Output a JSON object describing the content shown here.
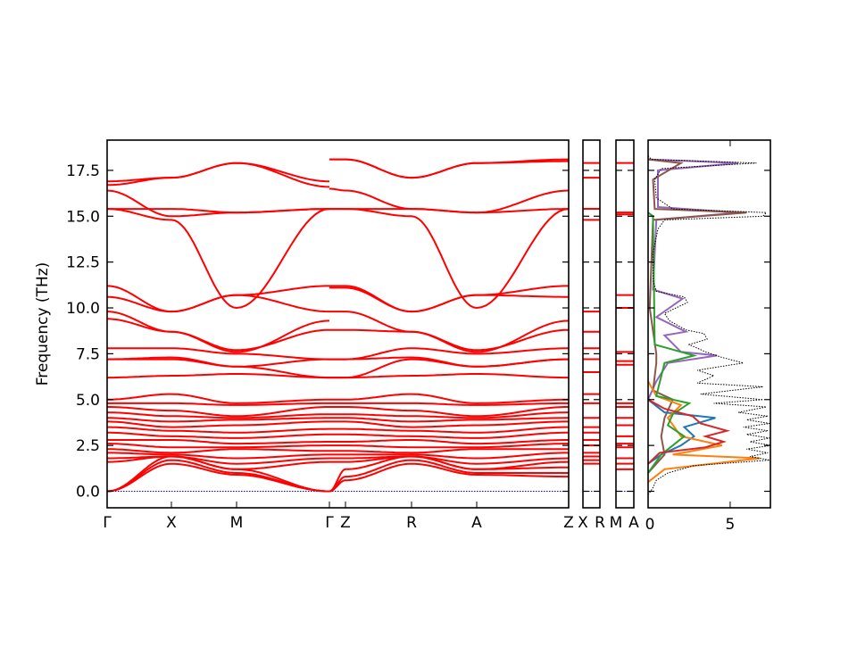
{
  "chart_data": {
    "type": "line",
    "title": "",
    "ylabel": "Frequency (THz)",
    "ylim": [
      -0.9,
      19.15
    ],
    "yticks": [
      "0.0",
      "2.5",
      "5.0",
      "7.5",
      "10.0",
      "12.5",
      "15.0",
      "17.5"
    ],
    "ytick_values": [
      0,
      2.5,
      5,
      7.5,
      10,
      12.5,
      15,
      17.5
    ],
    "band_color": "#ff0000",
    "zero_line_color": "#0000ff",
    "panels": [
      {
        "name": "main",
        "kpath_labels": [
          "Γ",
          "X",
          "M",
          "Γ",
          "Z",
          "R",
          "A",
          "Z"
        ],
        "segments": [
          {
            "labels": [
              "Γ",
              "X",
              "M",
              "Γ"
            ],
            "bands": [
              [
                16.9,
                17.1,
                17.9,
                16.6
              ],
              [
                16.7,
                17.1,
                17.9,
                16.9
              ],
              [
                16.4,
                15.0,
                15.2,
                15.4
              ],
              [
                15.4,
                15.4,
                15.2,
                15.4
              ],
              [
                15.4,
                14.8,
                10.0,
                15.4
              ],
              [
                11.2,
                9.8,
                10.7,
                11.2
              ],
              [
                10.6,
                9.8,
                10.7,
                9.8
              ],
              [
                9.8,
                8.7,
                7.6,
                9.3
              ],
              [
                9.4,
                8.7,
                7.7,
                8.8
              ],
              [
                7.8,
                7.8,
                7.5,
                7.2
              ],
              [
                7.2,
                7.3,
                6.8,
                7.2
              ],
              [
                7.2,
                7.2,
                6.8,
                6.2
              ],
              [
                6.2,
                6.3,
                6.4,
                6.2
              ],
              [
                5.0,
                5.3,
                4.8,
                5.0
              ],
              [
                4.8,
                4.8,
                4.7,
                4.8
              ],
              [
                4.6,
                4.4,
                4.1,
                4.6
              ],
              [
                4.3,
                4.1,
                4.0,
                4.2
              ],
              [
                4.0,
                3.8,
                3.9,
                4.0
              ],
              [
                3.8,
                3.5,
                3.6,
                3.8
              ],
              [
                3.5,
                3.3,
                3.2,
                3.4
              ],
              [
                3.2,
                3.0,
                2.9,
                3.1
              ],
              [
                2.8,
                2.8,
                2.6,
                2.7
              ],
              [
                2.6,
                2.4,
                2.4,
                2.5
              ],
              [
                2.3,
                2.1,
                2.3,
                2.2
              ],
              [
                2.1,
                2.0,
                1.8,
                2.0
              ],
              [
                1.8,
                1.9,
                1.5,
                1.8
              ],
              [
                1.6,
                1.9,
                1.2,
                1.6
              ],
              [
                0,
                1.9,
                1.2,
                0
              ],
              [
                0,
                1.7,
                1.0,
                0
              ],
              [
                0,
                1.5,
                0.9,
                0
              ]
            ]
          },
          {
            "labels": [
              "Γ",
              "Z",
              "R",
              "A",
              "Z"
            ],
            "bands": [
              [
                18.1,
                18.1,
                17.1,
                17.9,
                18.1
              ],
              [
                18.1,
                18.1,
                17.1,
                17.9,
                18.0
              ],
              [
                16.5,
                16.4,
                15.4,
                15.2,
                16.4
              ],
              [
                15.4,
                15.4,
                15.4,
                15.2,
                15.4
              ],
              [
                15.4,
                15.4,
                15.0,
                10.0,
                15.4
              ],
              [
                11.2,
                11.2,
                9.8,
                10.7,
                11.2
              ],
              [
                11.1,
                11.1,
                9.8,
                10.7,
                10.6
              ],
              [
                9.8,
                9.8,
                8.7,
                7.6,
                9.3
              ],
              [
                8.8,
                8.8,
                8.7,
                7.7,
                8.8
              ],
              [
                7.2,
                7.2,
                7.8,
                7.5,
                7.8
              ],
              [
                7.2,
                7.2,
                7.3,
                6.8,
                7.2
              ],
              [
                6.2,
                6.2,
                7.2,
                6.8,
                7.2
              ],
              [
                6.2,
                6.2,
                6.3,
                6.4,
                6.2
              ],
              [
                5.0,
                5.0,
                5.3,
                4.8,
                5.0
              ],
              [
                4.8,
                4.8,
                4.8,
                4.7,
                4.8
              ],
              [
                4.6,
                4.6,
                4.4,
                4.1,
                4.6
              ],
              [
                4.2,
                4.2,
                4.1,
                4.0,
                4.3
              ],
              [
                4.0,
                4.0,
                3.8,
                3.9,
                4.0
              ],
              [
                3.8,
                3.8,
                3.5,
                3.6,
                3.8
              ],
              [
                3.4,
                3.4,
                3.3,
                3.2,
                3.5
              ],
              [
                3.1,
                3.1,
                3.0,
                2.9,
                3.2
              ],
              [
                2.7,
                2.7,
                2.8,
                2.6,
                2.8
              ],
              [
                2.5,
                2.5,
                2.4,
                2.4,
                2.6
              ],
              [
                2.2,
                2.2,
                2.1,
                2.3,
                2.3
              ],
              [
                2.0,
                2.0,
                2.0,
                1.8,
                2.1
              ],
              [
                1.8,
                1.8,
                1.9,
                1.5,
                1.8
              ],
              [
                1.6,
                1.6,
                1.9,
                1.2,
                1.6
              ],
              [
                0,
                1.2,
                1.9,
                1.2,
                1.3
              ],
              [
                0,
                0.8,
                1.7,
                1.0,
                1.0
              ],
              [
                0,
                0.6,
                1.5,
                0.9,
                0.8
              ]
            ]
          }
        ]
      },
      {
        "name": "X-R",
        "kpath_labels": [
          "X",
          "R"
        ],
        "levels": [
          17.9,
          17.1,
          15.4,
          14.8,
          9.8,
          8.7,
          7.8,
          7.2,
          6.5,
          5.3,
          4.8,
          4.0,
          3.5,
          3.2,
          2.8,
          2.5,
          2.1,
          1.9,
          1.7,
          1.5,
          0
        ]
      },
      {
        "name": "M-A",
        "kpath_labels": [
          "M",
          "A"
        ],
        "levels": [
          17.9,
          15.2,
          15.1,
          10.7,
          10.0,
          7.6,
          7.1,
          6.9,
          4.8,
          4.6,
          4.0,
          3.6,
          3.0,
          2.6,
          2.4,
          1.8,
          1.5,
          1.2,
          0
        ]
      }
    ],
    "dos": {
      "xlim": [
        0,
        7.45
      ],
      "xticks": [
        "0",
        "5"
      ],
      "xtick_values": [
        0,
        5
      ],
      "total": {
        "name": "total",
        "color": "#000000",
        "points": [
          [
            -0.2,
            0
          ],
          [
            0.2,
            0.3
          ],
          [
            0.6,
            0.5
          ],
          [
            1.0,
            1.2
          ],
          [
            1.4,
            2.8
          ],
          [
            1.7,
            7.4
          ],
          [
            1.9,
            6.2
          ],
          [
            2.1,
            7.3
          ],
          [
            2.3,
            6.0
          ],
          [
            2.5,
            7.5
          ],
          [
            2.7,
            6.2
          ],
          [
            2.9,
            7.4
          ],
          [
            3.1,
            6.0
          ],
          [
            3.3,
            7.3
          ],
          [
            3.5,
            5.8
          ],
          [
            3.7,
            7.4
          ],
          [
            3.9,
            6.0
          ],
          [
            4.1,
            7.3
          ],
          [
            4.3,
            5.5
          ],
          [
            4.6,
            7.2
          ],
          [
            4.8,
            4.0
          ],
          [
            5.0,
            7.0
          ],
          [
            5.3,
            3.2
          ],
          [
            5.7,
            7.0
          ],
          [
            5.9,
            3.0
          ],
          [
            6.3,
            4.0
          ],
          [
            6.6,
            3.0
          ],
          [
            7.0,
            5.8
          ],
          [
            7.3,
            4.5
          ],
          [
            7.6,
            3.5
          ],
          [
            8.0,
            2.5
          ],
          [
            8.3,
            3.6
          ],
          [
            8.6,
            3.4
          ],
          [
            8.8,
            2.3
          ],
          [
            9.3,
            1.3
          ],
          [
            9.7,
            1.0
          ],
          [
            10.3,
            2.4
          ],
          [
            10.6,
            2.2
          ],
          [
            10.9,
            0.5
          ],
          [
            11.5,
            0.3
          ],
          [
            13.0,
            0.3
          ],
          [
            14.3,
            0.6
          ],
          [
            14.8,
            1.0
          ],
          [
            15.0,
            7.0
          ],
          [
            15.2,
            7.2
          ],
          [
            15.4,
            1.5
          ],
          [
            16.0,
            0.5
          ],
          [
            17.0,
            0.4
          ],
          [
            17.6,
            0.8
          ],
          [
            17.9,
            6.6
          ],
          [
            18.1,
            0.2
          ],
          [
            18.3,
            0
          ]
        ]
      },
      "partials": [
        {
          "name": "purple",
          "color": "#9467bd",
          "points": [
            [
              5,
              0
            ],
            [
              6,
              0.5
            ],
            [
              7,
              1.2
            ],
            [
              7.4,
              4.2
            ],
            [
              7.6,
              2
            ],
            [
              8.5,
              1
            ],
            [
              8.7,
              2.3
            ],
            [
              9.5,
              0.5
            ],
            [
              10.5,
              2.1
            ],
            [
              11,
              0.3
            ],
            [
              14.8,
              0.5
            ],
            [
              15.2,
              5.5
            ],
            [
              15.5,
              0.6
            ],
            [
              17.5,
              0.6
            ],
            [
              17.9,
              5.5
            ],
            [
              18.1,
              0
            ]
          ]
        },
        {
          "name": "brown",
          "color": "#8c564b",
          "points": [
            [
              1,
              0
            ],
            [
              2,
              1
            ],
            [
              3,
              0.8
            ],
            [
              4,
              1
            ],
            [
              5,
              1.5
            ],
            [
              5.5,
              0.3
            ],
            [
              7,
              0.5
            ],
            [
              7.5,
              0.5
            ],
            [
              10,
              0.1
            ],
            [
              14.8,
              0.3
            ],
            [
              15.2,
              6.0
            ],
            [
              15.4,
              0.4
            ],
            [
              17,
              0.3
            ],
            [
              17.9,
              2.0
            ],
            [
              18.1,
              0
            ]
          ]
        },
        {
          "name": "blue",
          "color": "#1f77b4",
          "points": [
            [
              1.5,
              0
            ],
            [
              2,
              0.8
            ],
            [
              2.5,
              2
            ],
            [
              3,
              2.8
            ],
            [
              3.5,
              2.2
            ],
            [
              4.0,
              4.1
            ],
            [
              4.3,
              1.0
            ],
            [
              5,
              0
            ]
          ]
        },
        {
          "name": "orange",
          "color": "#ff7f0e",
          "points": [
            [
              0.5,
              0
            ],
            [
              1.2,
              1.0
            ],
            [
              1.8,
              6.8
            ],
            [
              2.0,
              1.5
            ],
            [
              2.5,
              4.5
            ],
            [
              3,
              2.0
            ],
            [
              4,
              1.2
            ],
            [
              4.7,
              2.0
            ],
            [
              5.2,
              0.5
            ],
            [
              6,
              0
            ]
          ]
        },
        {
          "name": "green",
          "color": "#2ca02c",
          "points": [
            [
              1,
              0
            ],
            [
              2,
              0.8
            ],
            [
              3,
              2.2
            ],
            [
              3.6,
              1.2
            ],
            [
              4.2,
              1.5
            ],
            [
              4.8,
              2.5
            ],
            [
              5.2,
              0.5
            ],
            [
              7,
              1
            ],
            [
              7.4,
              2.8
            ],
            [
              8,
              0.4
            ],
            [
              15,
              0.3
            ],
            [
              15.2,
              0
            ]
          ]
        },
        {
          "name": "red",
          "color": "#d62728",
          "points": [
            [
              1.5,
              0
            ],
            [
              2.1,
              0.7
            ],
            [
              2.4,
              3.5
            ],
            [
              2.7,
              4.6
            ],
            [
              3.0,
              3.5
            ],
            [
              3.3,
              4.8
            ],
            [
              3.7,
              3.2
            ],
            [
              4.1,
              2.7
            ],
            [
              4.5,
              1.0
            ],
            [
              5,
              0
            ]
          ]
        }
      ]
    }
  }
}
